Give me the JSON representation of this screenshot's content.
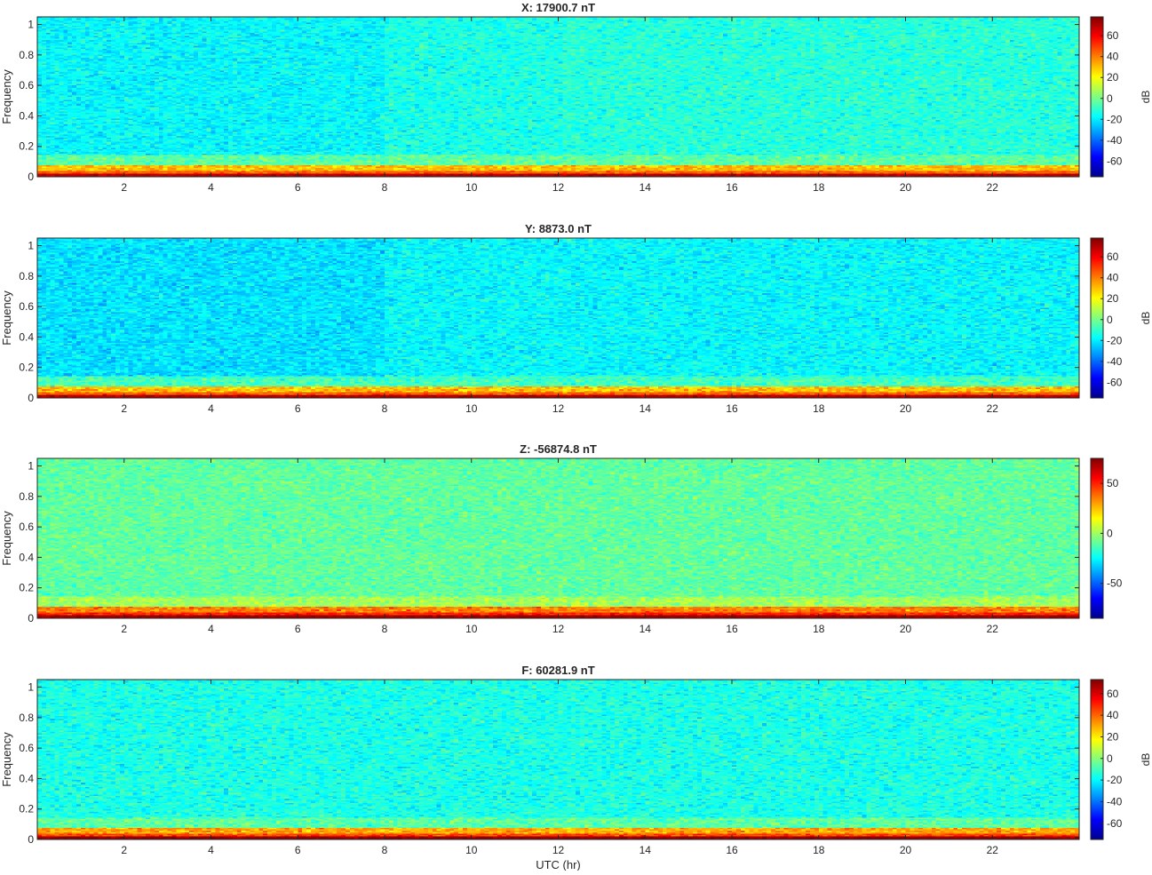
{
  "figure": {
    "xlabel": "UTC (hr)"
  },
  "colormap": [
    "#00008f",
    "#0000ff",
    "#0080ff",
    "#00ffff",
    "#80ff80",
    "#ffff00",
    "#ff8000",
    "#ff0000",
    "#800000"
  ],
  "chart_data": [
    {
      "type": "heatmap",
      "title": "X: 17900.7 nT",
      "xlabel": "",
      "ylabel": "Frequency",
      "xlim": [
        0,
        24
      ],
      "ylim": [
        0,
        1.05
      ],
      "xticks": [
        2,
        4,
        6,
        8,
        10,
        12,
        14,
        16,
        18,
        20,
        22
      ],
      "yticks": [
        0,
        0.2,
        0.4,
        0.6,
        0.8,
        1
      ],
      "colorbar": {
        "label": "dB",
        "clim": [
          -75,
          78
        ],
        "ticks": [
          -60,
          -40,
          -20,
          0,
          20,
          40,
          60
        ]
      },
      "background_db": -14,
      "low_freq_band_db": 35,
      "dc_db": 70
    },
    {
      "type": "heatmap",
      "title": "Y: 8873.0 nT",
      "xlabel": "",
      "ylabel": "Frequency",
      "xlim": [
        0,
        24
      ],
      "ylim": [
        0,
        1.05
      ],
      "xticks": [
        2,
        4,
        6,
        8,
        10,
        12,
        14,
        16,
        18,
        20,
        22
      ],
      "yticks": [
        0,
        0.2,
        0.4,
        0.6,
        0.8,
        1
      ],
      "colorbar": {
        "label": "dB",
        "clim": [
          -75,
          78
        ],
        "ticks": [
          -60,
          -40,
          -20,
          0,
          20,
          40,
          60
        ]
      },
      "background_db": -18,
      "low_freq_band_db": 35,
      "dc_db": 70
    },
    {
      "type": "heatmap",
      "title": "Z: -56874.8 nT",
      "xlabel": "",
      "ylabel": "Frequency",
      "xlim": [
        0,
        24
      ],
      "ylim": [
        0,
        1.05
      ],
      "xticks": [
        2,
        4,
        6,
        8,
        10,
        12,
        14,
        16,
        18,
        20,
        22
      ],
      "yticks": [
        0,
        0.2,
        0.4,
        0.6,
        0.8,
        1
      ],
      "colorbar": {
        "label": "",
        "clim": [
          -85,
          75
        ],
        "ticks": [
          -50,
          0,
          50
        ]
      },
      "background_db": -10,
      "low_freq_band_db": 40,
      "dc_db": 70
    },
    {
      "type": "heatmap",
      "title": "F: 60281.9 nT",
      "xlabel": "UTC (hr)",
      "ylabel": "Frequency",
      "xlim": [
        0,
        24
      ],
      "ylim": [
        0,
        1.05
      ],
      "xticks": [
        2,
        4,
        6,
        8,
        10,
        12,
        14,
        16,
        18,
        20,
        22
      ],
      "yticks": [
        0,
        0.2,
        0.4,
        0.6,
        0.8,
        1
      ],
      "colorbar": {
        "label": "dB",
        "clim": [
          -75,
          73
        ],
        "ticks": [
          -60,
          -40,
          -20,
          0,
          20,
          40,
          60
        ]
      },
      "background_db": -16,
      "low_freq_band_db": 35,
      "dc_db": 70
    }
  ]
}
